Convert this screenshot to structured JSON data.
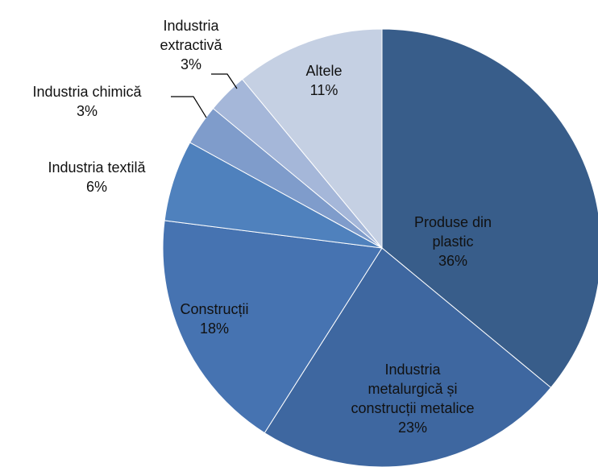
{
  "chart_data": {
    "type": "pie",
    "categories": [
      "Produse din plastic",
      "Industria metalurgică și construcții metalice",
      "Construcții",
      "Industria textilă",
      "Industria chimică",
      "Industria extractivă",
      "Altele"
    ],
    "values": [
      36,
      23,
      18,
      6,
      3,
      3,
      11
    ],
    "value_labels": [
      "36%",
      "23%",
      "18%",
      "6%",
      "3%",
      "3%",
      "11%"
    ],
    "colors": [
      "#385d8a",
      "#3e67a0",
      "#4673b1",
      "#4f81bd",
      "#7f9ccb",
      "#a5b7d9",
      "#c5d0e3"
    ]
  }
}
